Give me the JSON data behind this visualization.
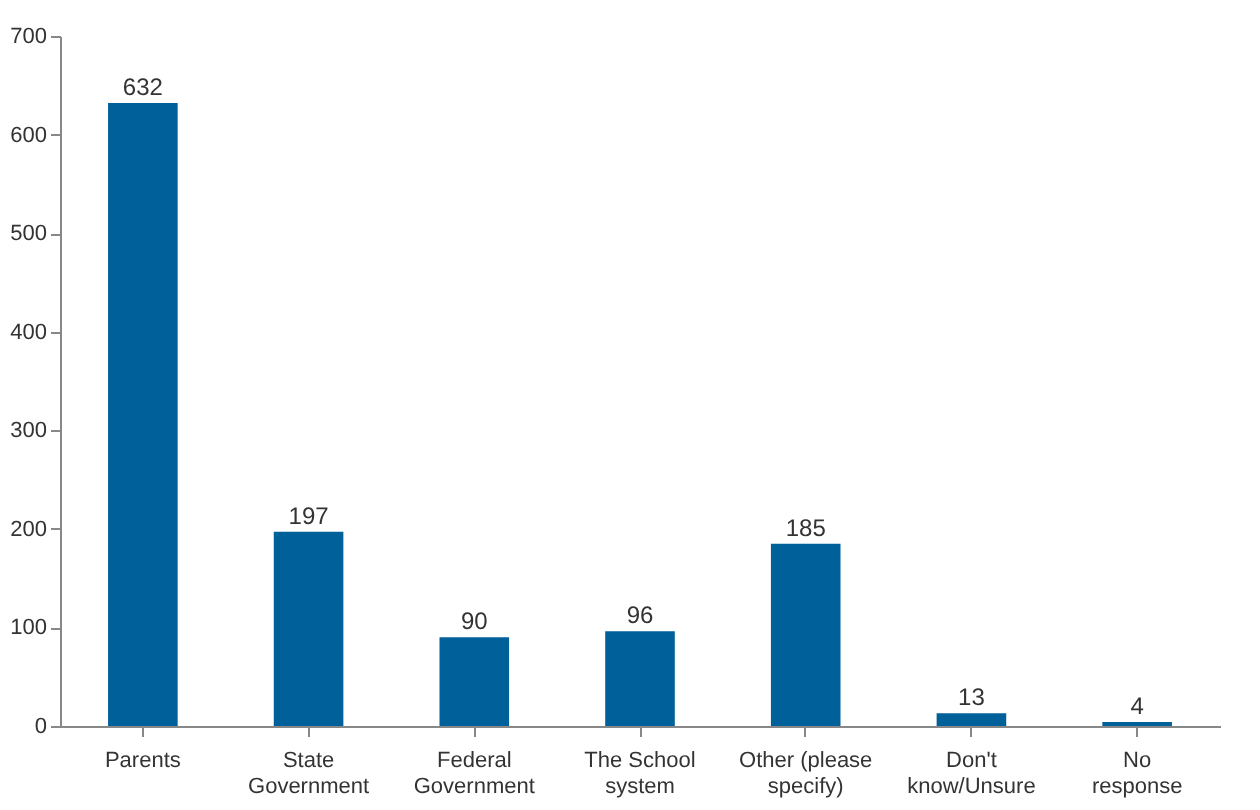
{
  "chart_data": {
    "type": "bar",
    "categories": [
      "Parents",
      "State Government",
      "Federal Government",
      "The School system",
      "Other (please specify)",
      "Don't know/Unsure",
      "No response"
    ],
    "values": [
      632,
      197,
      90,
      96,
      185,
      13,
      4
    ],
    "color": "#00609a",
    "ylim": [
      0,
      700
    ],
    "yticks": [
      0,
      100,
      200,
      300,
      400,
      500,
      600,
      700
    ],
    "grid": false,
    "data_labels": true
  }
}
